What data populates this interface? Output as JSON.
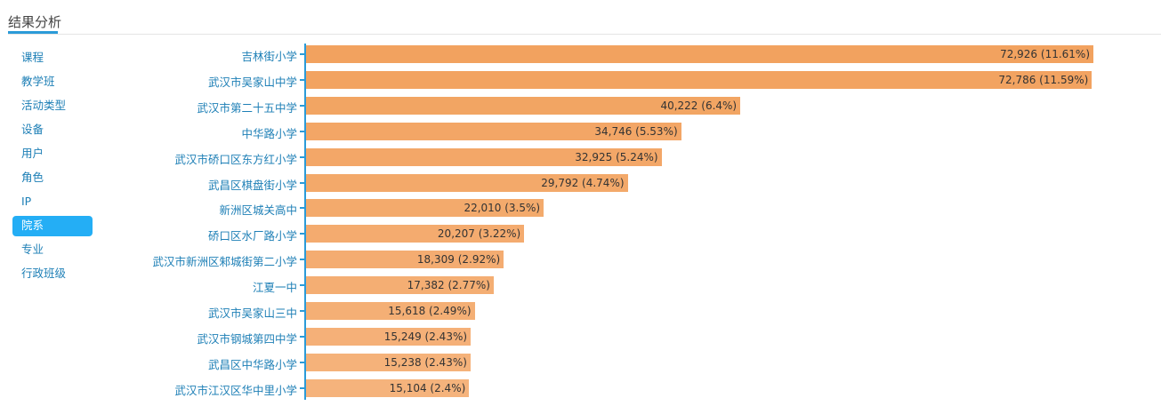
{
  "header": {
    "title": "结果分析"
  },
  "sidebar": {
    "items": [
      {
        "label": "课程"
      },
      {
        "label": "教学班"
      },
      {
        "label": "活动类型"
      },
      {
        "label": "设备"
      },
      {
        "label": "用户"
      },
      {
        "label": "角色"
      },
      {
        "label": "IP"
      },
      {
        "label": "院系",
        "active": true
      },
      {
        "label": "专业"
      },
      {
        "label": "行政班级"
      }
    ]
  },
  "chart_data": {
    "type": "bar",
    "orientation": "horizontal",
    "title": "",
    "xlabel": "",
    "ylabel": "",
    "categories": [
      "吉林街小学",
      "武汉市吴家山中学",
      "武汉市第二十五中学",
      "中华路小学",
      "武汉市硚口区东方红小学",
      "武昌区棋盘街小学",
      "新洲区城关高中",
      "硚口区水厂路小学",
      "武汉市新洲区邾城街第二小学",
      "江夏一中",
      "武汉市吴家山三中",
      "武汉市钢城第四中学",
      "武昌区中华路小学",
      "武汉市江汉区华中里小学"
    ],
    "values": [
      72926,
      72786,
      40222,
      34746,
      32925,
      29792,
      22010,
      20207,
      18309,
      17382,
      15618,
      15249,
      15238,
      15104
    ],
    "labels": [
      "72,926 (11.61%)",
      "72,786 (11.59%)",
      "40,222 (6.4%)",
      "34,746 (5.53%)",
      "32,925 (5.24%)",
      "29,792 (4.74%)",
      "22,010 (3.5%)",
      "20,207 (3.22%)",
      "18,309 (2.92%)",
      "17,382 (2.77%)",
      "15,618 (2.49%)",
      "15,249 (2.43%)",
      "15,238 (2.43%)",
      "15,104 (2.4%)"
    ],
    "xlim": [
      0,
      72926
    ],
    "colors": {
      "top": "#f2a25f",
      "bottom": "#f5b37c",
      "axis": "#2b9bd8"
    }
  }
}
